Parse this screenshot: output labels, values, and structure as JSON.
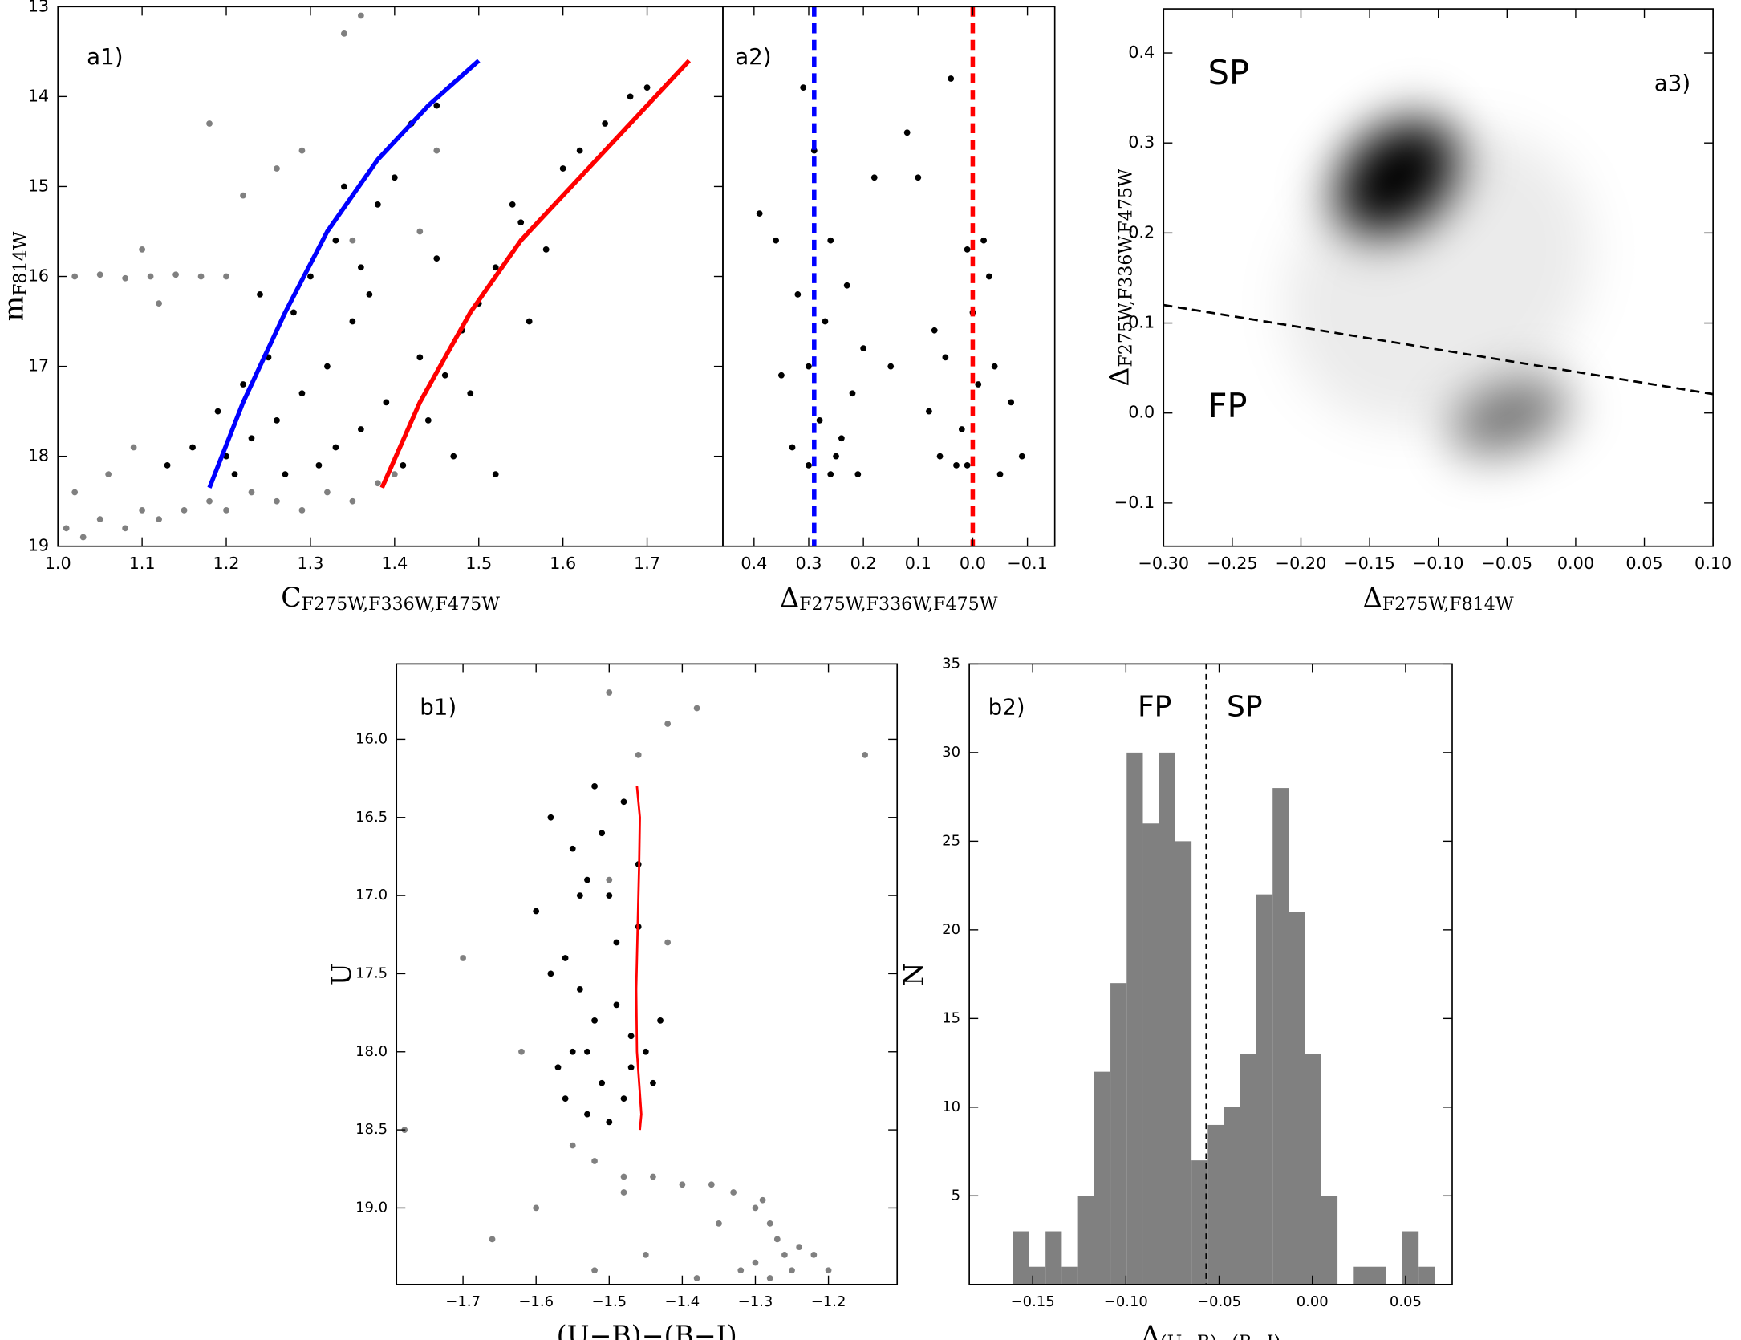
{
  "chart_data": [
    {
      "type": "scatter",
      "panel_label": "a1)",
      "xlabel": {
        "text": "C",
        "sub": "F275W,F336W,F475W"
      },
      "ylabel": {
        "text": "m",
        "sub": "F814W"
      },
      "xlim": [
        1.0,
        1.79
      ],
      "ylim": [
        19,
        13
      ],
      "xticks": [
        {
          "value": 1,
          "label": "1.0"
        },
        1.1,
        1.2,
        1.3,
        1.4,
        1.5,
        1.6,
        1.7
      ],
      "yticks": [
        13,
        14,
        15,
        16,
        17,
        18,
        19
      ],
      "series": [
        {
          "color": "#808080",
          "x": [
            1.01,
            1.03,
            1.05,
            1.08,
            1.1,
            1.12,
            1.15,
            1.18,
            1.2,
            1.23,
            1.26,
            1.29,
            1.32,
            1.35,
            1.38,
            1.4,
            1.02,
            1.05,
            1.08,
            1.11,
            1.14,
            1.17,
            1.2,
            1.02,
            1.06,
            1.09,
            1.26,
            1.29,
            1.34,
            1.36,
            1.45,
            1.43,
            1.35,
            1.22,
            1.18,
            1.12,
            1.1
          ],
          "y": [
            18.8,
            18.9,
            18.7,
            18.8,
            18.6,
            18.7,
            18.6,
            18.5,
            18.6,
            18.4,
            18.5,
            18.6,
            18.4,
            18.5,
            18.3,
            18.2,
            16.0,
            15.98,
            16.02,
            16.0,
            15.98,
            16.0,
            16.0,
            18.4,
            18.2,
            17.9,
            14.8,
            14.6,
            13.3,
            13.1,
            14.6,
            15.5,
            15.6,
            15.1,
            14.3,
            16.3,
            15.7
          ]
        },
        {
          "color": "#000000",
          "x": [
            1.13,
            1.16,
            1.19,
            1.2,
            1.22,
            1.23,
            1.25,
            1.26,
            1.28,
            1.29,
            1.3,
            1.32,
            1.33,
            1.35,
            1.36,
            1.38,
            1.31,
            1.27,
            1.4,
            1.42,
            1.45,
            1.34,
            1.37,
            1.41,
            1.44,
            1.46,
            1.48,
            1.43,
            1.5,
            1.52,
            1.47,
            1.55,
            1.58,
            1.6,
            1.62,
            1.65,
            1.68,
            1.7,
            1.39,
            1.45,
            1.24,
            1.21,
            1.33,
            1.49,
            1.56,
            1.52,
            1.54,
            1.36
          ],
          "y": [
            18.1,
            17.9,
            17.5,
            18.0,
            17.2,
            17.8,
            16.9,
            17.6,
            16.4,
            17.3,
            16.0,
            17.0,
            15.6,
            16.5,
            17.7,
            15.2,
            18.1,
            18.2,
            14.9,
            14.3,
            14.1,
            15.0,
            16.2,
            18.1,
            17.6,
            17.1,
            16.6,
            16.9,
            16.3,
            15.9,
            18.0,
            15.4,
            15.7,
            14.8,
            14.6,
            14.3,
            14.0,
            13.9,
            17.4,
            15.8,
            16.2,
            18.2,
            17.9,
            17.3,
            16.5,
            18.2,
            15.2,
            15.9
          ]
        }
      ],
      "lines": [
        {
          "color": "#0000ff",
          "x": [
            1.18,
            1.22,
            1.27,
            1.32,
            1.38,
            1.44,
            1.5
          ],
          "y": [
            18.35,
            17.4,
            16.4,
            15.5,
            14.7,
            14.1,
            13.6
          ]
        },
        {
          "color": "#ff0000",
          "x": [
            1.385,
            1.43,
            1.49,
            1.55,
            1.62,
            1.69,
            1.75
          ],
          "y": [
            18.35,
            17.4,
            16.4,
            15.6,
            14.9,
            14.2,
            13.6
          ]
        }
      ]
    },
    {
      "type": "scatter",
      "panel_label": "a2)",
      "xlabel": {
        "text": "Δ",
        "sub": "F275W,F336W,F475W"
      },
      "xlim": [
        0.457,
        -0.15
      ],
      "ylim": [
        19,
        13
      ],
      "xticks": [
        0.4,
        0.3,
        0.2,
        0.1,
        {
          "value": 0,
          "label": "0.0"
        },
        {
          "value": -0.1,
          "label": "−0.1"
        }
      ],
      "series": [
        {
          "color": "#000000",
          "x": [
            0.35,
            0.32,
            0.3,
            0.28,
            0.26,
            0.25,
            0.22,
            0.2,
            0.18,
            0.33,
            0.31,
            0.27,
            0.24,
            0.29,
            0.36,
            0.39,
            0.21,
            0.15,
            0.12,
            0.08,
            0.05,
            0.03,
            0.01,
            -0.01,
            -0.03,
            0.06,
            0.02,
            0.0,
            -0.02,
            0.04,
            -0.05,
            -0.07,
            0.07,
            0.1,
            -0.09,
            0.23,
            0.3,
            0.26,
            0.01,
            -0.04
          ],
          "y": [
            17.1,
            16.2,
            18.1,
            17.6,
            15.6,
            18.0,
            17.3,
            16.8,
            14.9,
            17.9,
            13.9,
            16.5,
            17.8,
            14.6,
            15.6,
            15.3,
            18.2,
            17.0,
            14.4,
            17.5,
            16.9,
            18.1,
            15.7,
            17.2,
            16.0,
            18.0,
            17.7,
            16.4,
            15.6,
            13.8,
            18.2,
            17.4,
            16.6,
            14.9,
            18.0,
            16.1,
            17.0,
            18.2,
            18.1,
            17.0
          ]
        }
      ],
      "reference_lines": [
        {
          "x": 0.29,
          "color": "#0000ff"
        },
        {
          "x": 0,
          "color": "#ff0000"
        }
      ]
    },
    {
      "type": "density",
      "panel_label": "a3)",
      "xlabel": {
        "text": "Δ",
        "sub": "F275W,F814W"
      },
      "ylabel": {
        "text": "Δ",
        "sub": "F275W,F336W,F475W"
      },
      "xlim": [
        -0.3,
        0.1
      ],
      "ylim": [
        -0.148,
        0.449
      ],
      "xticks": [
        {
          "value": -0.3,
          "label": "−0.30"
        },
        {
          "value": -0.25,
          "label": "−0.25"
        },
        {
          "value": -0.2,
          "label": "−0.20"
        },
        {
          "value": -0.15,
          "label": "−0.15"
        },
        {
          "value": -0.1,
          "label": "−0.10"
        },
        {
          "value": -0.05,
          "label": "−0.05"
        },
        {
          "value": 0,
          "label": "0.00"
        },
        {
          "value": 0.05,
          "label": "0.05"
        },
        {
          "value": 0.1,
          "label": "0.10"
        }
      ],
      "yticks": [
        {
          "value": -0.1,
          "label": "−0.1"
        },
        {
          "value": 0,
          "label": "0.0"
        },
        0.1,
        0.2,
        0.3,
        0.4
      ],
      "density": [
        {
          "x": -0.1,
          "y": 0.15,
          "sx": 0.12,
          "sy": 0.15,
          "peak": 0.08
        },
        {
          "x": -0.13,
          "y": 0.262,
          "sx": 0.05,
          "sy": 0.055,
          "peak": 1
        },
        {
          "x": -0.048,
          "y": -0.004,
          "sx": 0.045,
          "sy": 0.037,
          "peak": 0.55
        }
      ],
      "separator": {
        "x": [
          -0.3,
          0.1
        ],
        "y": [
          0.12,
          0.021
        ]
      },
      "annotations": [
        {
          "text": "SP",
          "color": "#1f1fff"
        },
        {
          "text": "FP",
          "color": "#ff1a1a"
        }
      ]
    },
    {
      "type": "scatter",
      "panel_label": "b1)",
      "xlabel": {
        "text": "(U−B)−(B−I)"
      },
      "ylabel": {
        "text": "U"
      },
      "xlim": [
        -1.791,
        -1.106
      ],
      "ylim": [
        19.49,
        15.517
      ],
      "xticks": [
        {
          "value": -1.7,
          "label": "−1.7"
        },
        {
          "value": -1.6,
          "label": "−1.6"
        },
        {
          "value": -1.5,
          "label": "−1.5"
        },
        {
          "value": -1.4,
          "label": "−1.4"
        },
        {
          "value": -1.3,
          "label": "−1.3"
        },
        {
          "value": -1.2,
          "label": "−1.2"
        }
      ],
      "yticks": [
        {
          "value": 16,
          "label": "16.0"
        },
        16.5,
        {
          "value": 17,
          "label": "17.0"
        },
        17.5,
        {
          "value": 18,
          "label": "18.0"
        },
        18.5,
        {
          "value": 19,
          "label": "19.0"
        }
      ],
      "series": [
        {
          "color": "#808080",
          "x": [
            -1.52,
            -1.48,
            -1.44,
            -1.4,
            -1.36,
            -1.33,
            -1.3,
            -1.28,
            -1.27,
            -1.26,
            -1.25,
            -1.3,
            -1.28,
            -1.24,
            -1.32,
            -1.22,
            -1.35,
            -1.29,
            -1.55,
            -1.5,
            -1.46,
            -1.42,
            -1.38,
            -1.62,
            -1.7,
            -1.78,
            -1.66,
            -1.2,
            -1.15,
            -1.45,
            -1.38,
            -1.6,
            -1.52,
            -1.48,
            -1.5,
            -1.42
          ],
          "y": [
            18.7,
            18.8,
            18.8,
            18.85,
            18.85,
            18.9,
            19.0,
            19.1,
            19.2,
            19.3,
            19.4,
            19.35,
            19.45,
            19.25,
            19.4,
            19.3,
            19.1,
            18.95,
            18.6,
            15.7,
            16.1,
            15.9,
            15.8,
            18.0,
            17.4,
            18.5,
            19.2,
            19.4,
            16.1,
            19.3,
            19.45,
            19.0,
            19.4,
            18.9,
            16.9,
            17.3
          ]
        },
        {
          "color": "#000000",
          "x": [
            -1.58,
            -1.55,
            -1.53,
            -1.5,
            -1.48,
            -1.46,
            -1.56,
            -1.54,
            -1.52,
            -1.49,
            -1.47,
            -1.45,
            -1.57,
            -1.51,
            -1.53,
            -1.55,
            -1.48,
            -1.44,
            -1.6,
            -1.5,
            -1.52,
            -1.46,
            -1.54,
            -1.49,
            -1.56,
            -1.47,
            -1.58,
            -1.43,
            -1.51,
            -1.53
          ],
          "y": [
            16.5,
            16.7,
            16.9,
            17.0,
            16.4,
            17.2,
            17.4,
            17.6,
            17.8,
            17.3,
            17.9,
            18.0,
            18.1,
            18.2,
            18.4,
            18.0,
            18.3,
            18.2,
            17.1,
            18.45,
            16.3,
            16.8,
            17.0,
            17.7,
            18.3,
            18.1,
            17.5,
            17.8,
            16.6,
            18.0
          ]
        }
      ],
      "lines": [
        {
          "color": "#ff0000",
          "x": [
            -1.462,
            -1.458,
            -1.459,
            -1.461,
            -1.463,
            -1.462,
            -1.459,
            -1.456,
            -1.458
          ],
          "y": [
            16.3,
            16.5,
            16.8,
            17.2,
            17.6,
            18.0,
            18.2,
            18.4,
            18.5
          ]
        }
      ]
    },
    {
      "type": "histogram",
      "panel_label": "b2)",
      "xlabel": {
        "text": "Δ",
        "sub": "(U−B)−(B−I)"
      },
      "ylabel": {
        "text": "N"
      },
      "xlim": [
        -0.184,
        0.075
      ],
      "ylim": [
        0,
        35
      ],
      "xticks": [
        {
          "value": -0.15,
          "label": "−0.15"
        },
        {
          "value": -0.1,
          "label": "−0.10"
        },
        {
          "value": -0.05,
          "label": "−0.05"
        },
        {
          "value": 0,
          "label": "0.00"
        },
        {
          "value": 0.05,
          "label": "0.05"
        }
      ],
      "yticks": [
        5,
        10,
        15,
        20,
        25,
        30,
        35
      ],
      "color": "#808080",
      "bins": [
        -0.1605,
        -0.1518,
        -0.1431,
        -0.1344,
        -0.1257,
        -0.117,
        -0.1083,
        -0.0996,
        -0.0909,
        -0.0822,
        -0.0735,
        -0.0648,
        -0.0561,
        -0.0474,
        -0.0387,
        -0.03,
        -0.0213,
        -0.0126,
        -0.0039,
        0.0048,
        0.0135,
        0.0222,
        0.0309,
        0.0396,
        0.0483,
        0.057,
        0.0657
      ],
      "counts": [
        3,
        1,
        3,
        1,
        5,
        12,
        17,
        30,
        26,
        30,
        25,
        7,
        9,
        10,
        13,
        22,
        28,
        21,
        13,
        5,
        0,
        1,
        1,
        0,
        3,
        1
      ],
      "reference_lines": [
        {
          "x": -0.057,
          "color": "#000000"
        }
      ],
      "annotations": [
        {
          "text": "FP",
          "color": "#ff1a1a"
        },
        {
          "text": "SP",
          "color": "#2a2aff"
        }
      ]
    }
  ]
}
